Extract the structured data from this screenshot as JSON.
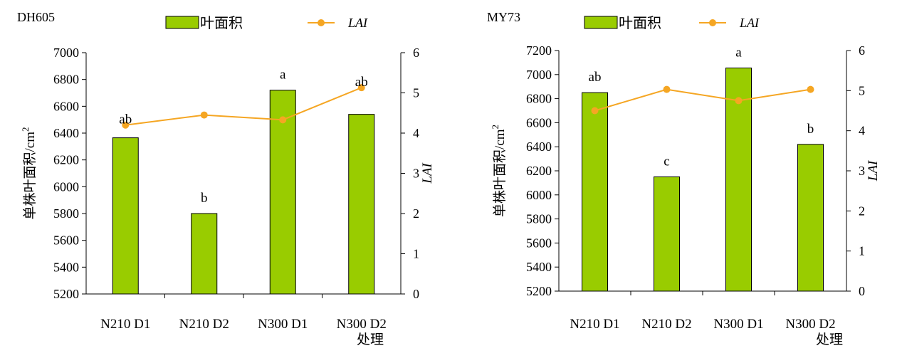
{
  "chart_data": [
    {
      "type": "bar",
      "title": "DH605",
      "categories": [
        "N210 D1",
        "N210 D2",
        "N300 D1",
        "N300 D2"
      ],
      "xlabel": "处理",
      "ylabel": "单株叶面积/cm²",
      "ylabel_text": "单株叶面积/cm",
      "ylabel_sup": "2",
      "y2label": "LAI",
      "ylim": [
        5200,
        7000
      ],
      "y_ticks": [
        5200,
        5400,
        5600,
        5800,
        6000,
        6200,
        6400,
        6600,
        6800,
        7000
      ],
      "y2lim": [
        0,
        6
      ],
      "y2_ticks": [
        0,
        1,
        2,
        3,
        4,
        5,
        6
      ],
      "series": [
        {
          "name": "叶面积",
          "axis": "left",
          "kind": "bar",
          "color": "#99cc00",
          "values": [
            6365,
            5800,
            6720,
            6540
          ]
        },
        {
          "name": "LAI",
          "axis": "right",
          "kind": "line",
          "color": "#f5a623",
          "values": [
            4.2,
            4.45,
            4.33,
            5.13
          ]
        }
      ],
      "annotations": [
        "ab",
        "b",
        "a",
        "ab"
      ],
      "legend": {
        "position": "top",
        "bar_label": "叶面积",
        "line_label": "LAI"
      }
    },
    {
      "type": "bar",
      "title": "MY73",
      "categories": [
        "N210 D1",
        "N210 D2",
        "N300 D1",
        "N300 D2"
      ],
      "xlabel": "处理",
      "ylabel": "单株叶面积/cm²",
      "ylabel_text": "单株叶面积/cm",
      "ylabel_sup": "2",
      "y2label": "LAI",
      "ylim": [
        5200,
        7200
      ],
      "y_ticks": [
        5200,
        5400,
        5600,
        5800,
        6000,
        6200,
        6400,
        6600,
        6800,
        7000,
        7200
      ],
      "y2lim": [
        0,
        6
      ],
      "y2_ticks": [
        0,
        1,
        2,
        3,
        4,
        5,
        6
      ],
      "series": [
        {
          "name": "叶面积",
          "axis": "left",
          "kind": "bar",
          "color": "#99cc00",
          "values": [
            6850,
            6150,
            7055,
            6420
          ]
        },
        {
          "name": "LAI",
          "axis": "right",
          "kind": "line",
          "color": "#f5a623",
          "values": [
            4.5,
            5.03,
            4.75,
            5.03
          ]
        }
      ],
      "annotations": [
        "ab",
        "c",
        "a",
        "b"
      ],
      "legend": {
        "position": "top",
        "bar_label": "叶面积",
        "line_label": "LAI"
      }
    }
  ]
}
